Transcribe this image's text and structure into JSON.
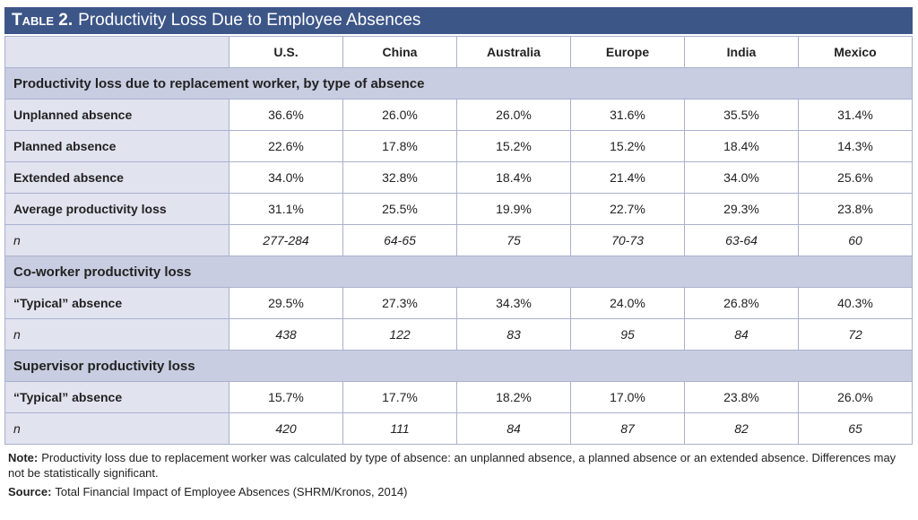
{
  "header": {
    "label": "Table 2.",
    "title": "Productivity Loss Due to Employee Absences"
  },
  "table": {
    "columns": [
      "U.S.",
      "China",
      "Australia",
      "Europe",
      "India",
      "Mexico"
    ],
    "sections": [
      {
        "title": "Productivity loss due to replacement worker, by type of absence",
        "rows": [
          {
            "label": "Unplanned absence",
            "cells": [
              "36.6%",
              "26.0%",
              "26.0%",
              "31.6%",
              "35.5%",
              "31.4%"
            ]
          },
          {
            "label": "Planned absence",
            "cells": [
              "22.6%",
              "17.8%",
              "15.2%",
              "15.2%",
              "18.4%",
              "14.3%"
            ]
          },
          {
            "label": "Extended absence",
            "cells": [
              "34.0%",
              "32.8%",
              "18.4%",
              "21.4%",
              "34.0%",
              "25.6%"
            ]
          },
          {
            "label": "Average productivity loss",
            "cells": [
              "31.1%",
              "25.5%",
              "19.9%",
              "22.7%",
              "29.3%",
              "23.8%"
            ]
          },
          {
            "label": "n",
            "cells": [
              "277-284",
              "64-65",
              "75",
              "70-73",
              "63-64",
              "60"
            ]
          }
        ]
      },
      {
        "title": "Co-worker productivity loss",
        "rows": [
          {
            "label": "“Typical” absence",
            "cells": [
              "29.5%",
              "27.3%",
              "34.3%",
              "24.0%",
              "26.8%",
              "40.3%"
            ]
          },
          {
            "label": "n",
            "cells": [
              "438",
              "122",
              "83",
              "95",
              "84",
              "72"
            ]
          }
        ]
      },
      {
        "title": "Supervisor productivity loss",
        "rows": [
          {
            "label": "“Typical” absence",
            "cells": [
              "15.7%",
              "17.7%",
              "18.2%",
              "17.0%",
              "23.8%",
              "26.0%"
            ]
          },
          {
            "label": "n",
            "cells": [
              "420",
              "111",
              "84",
              "87",
              "82",
              "65"
            ]
          }
        ]
      }
    ]
  },
  "footer": {
    "note_label": "Note:",
    "note": "Productivity loss due to replacement worker was calculated by type of absence: an unplanned absence, a planned absence or an extended absence. Differences may not be statistically significant.",
    "source_label": "Source:",
    "source": "Total Financial Impact of Employee Absences (SHRM/Kronos, 2014)"
  }
}
